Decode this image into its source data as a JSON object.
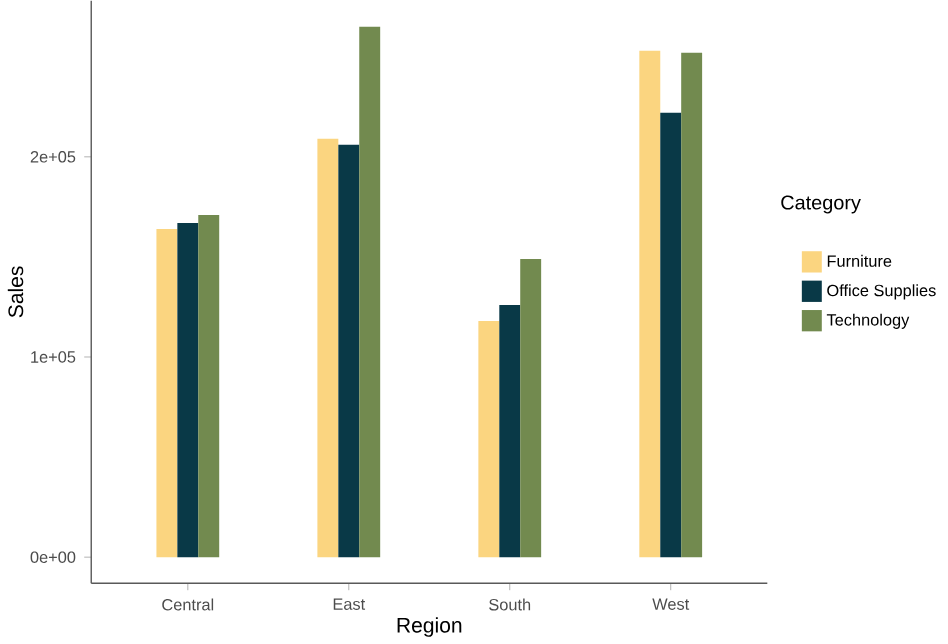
{
  "chart_data": {
    "type": "bar",
    "xlabel": "Region",
    "ylabel": "Sales",
    "legend_title": "Category",
    "categories": [
      "Central",
      "East",
      "South",
      "West"
    ],
    "series": [
      {
        "name": "Furniture",
        "color": "#fbd580",
        "values": [
          164000,
          209000,
          118000,
          253000
        ]
      },
      {
        "name": "Office Supplies",
        "color": "#093947",
        "values": [
          167000,
          206000,
          126000,
          222000
        ]
      },
      {
        "name": "Technology",
        "color": "#728a4f",
        "values": [
          171000,
          265000,
          149000,
          252000
        ]
      }
    ],
    "ylim": [
      -13000,
      278000
    ],
    "yticks": [
      {
        "value": 0,
        "label": "0e+00"
      },
      {
        "value": 100000,
        "label": "1e+05"
      },
      {
        "value": 200000,
        "label": "2e+05"
      }
    ],
    "grid": false,
    "legend": "right"
  }
}
